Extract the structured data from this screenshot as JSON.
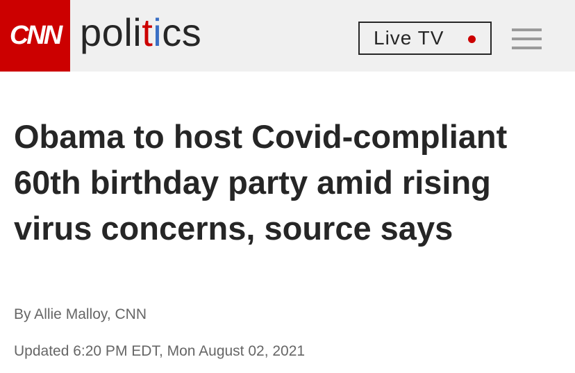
{
  "header": {
    "logo": "CNN",
    "section": "politics",
    "live_button": "Live TV"
  },
  "article": {
    "headline": "Obama to host Covid-compliant 60th birthday party amid rising virus concerns, source says",
    "byline": "By Allie Malloy, CNN",
    "timestamp": "Updated 6:20 PM EDT, Mon August 02, 2021"
  }
}
